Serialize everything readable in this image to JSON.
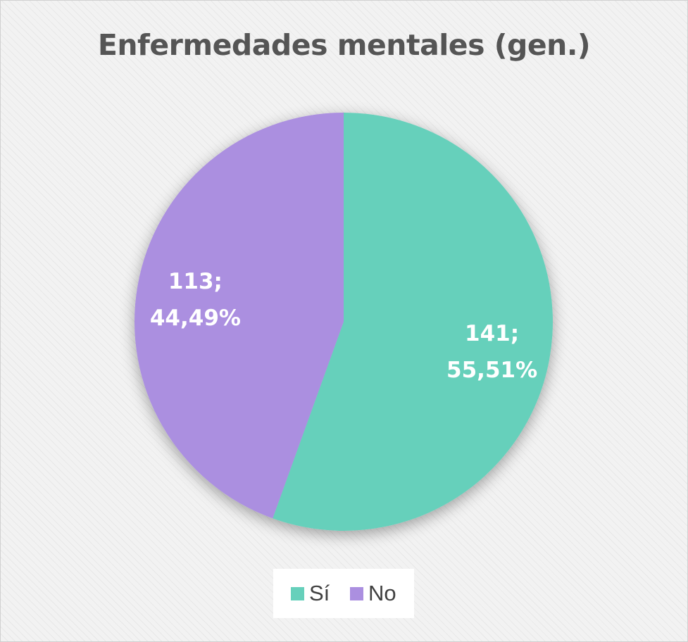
{
  "chart_data": {
    "type": "pie",
    "title": "Enfermedades mentales (gen.)",
    "slices": [
      {
        "name": "Sí",
        "value": 141,
        "percent_label": "55,51%",
        "label": "141;\n55,51%",
        "color": "#66d0bb"
      },
      {
        "name": "No",
        "value": 113,
        "percent_label": "44,49%",
        "label": "113;\n44,49%",
        "color": "#ab8fe0"
      }
    ],
    "legend": {
      "position": "bottom",
      "entries": [
        "Sí",
        "No"
      ]
    }
  },
  "colors": {
    "label_text": "#ffffff",
    "title_text": "#555555"
  }
}
